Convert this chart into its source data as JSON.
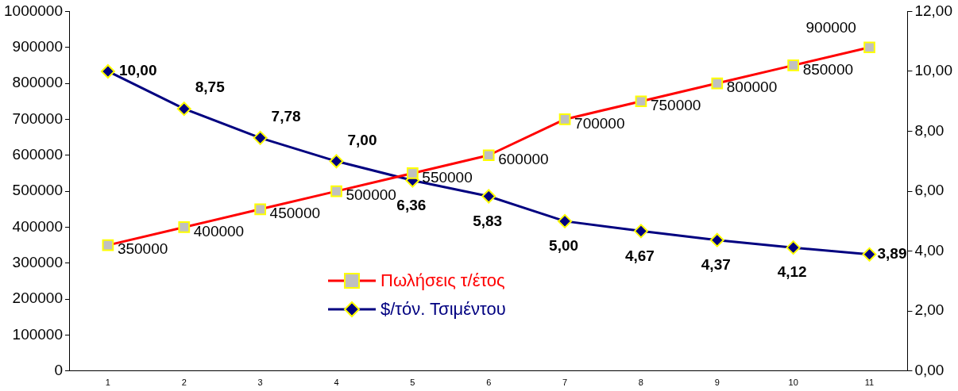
{
  "chart_data": {
    "type": "line",
    "categories": [
      "1",
      "2",
      "3",
      "4",
      "5",
      "6",
      "7",
      "8",
      "9",
      "10",
      "11"
    ],
    "series": [
      {
        "name": "Πωλήσεις τ/έτος",
        "color": "#ff0000",
        "marker": "square",
        "values": [
          350000,
          400000,
          450000,
          500000,
          550000,
          600000,
          700000,
          750000,
          800000,
          850000,
          900000
        ],
        "value_labels": [
          "350000",
          "400000",
          "450000",
          "500000",
          "550000",
          "600000",
          "700000",
          "750000",
          "800000",
          "850000",
          "900000"
        ]
      },
      {
        "name": "$/τόν. Τσιμέντου",
        "color": "#000080",
        "marker": "diamond",
        "axis": "y2",
        "values": [
          10.0,
          8.75,
          7.78,
          7.0,
          6.36,
          5.83,
          5.0,
          4.67,
          4.37,
          4.12,
          3.89
        ],
        "value_labels": [
          "10,00",
          "8,75",
          "7,78",
          "7,00",
          "6,36",
          "5,83",
          "5,00",
          "4,67",
          "4,37",
          "4,12",
          "3,89"
        ]
      }
    ],
    "ylim": [
      0,
      1000000
    ],
    "yticks": [
      0,
      100000,
      200000,
      300000,
      400000,
      500000,
      600000,
      700000,
      800000,
      900000,
      1000000
    ],
    "y2lim": [
      0,
      12
    ],
    "y2ticks": [
      {
        "value": 0,
        "label": "0,00"
      },
      {
        "value": 2,
        "label": "2,00"
      },
      {
        "value": 4,
        "label": "4,00"
      },
      {
        "value": 6,
        "label": "6,00"
      },
      {
        "value": 8,
        "label": "8,00"
      },
      {
        "value": 10,
        "label": "10,00"
      },
      {
        "value": 12,
        "label": "12,00"
      }
    ],
    "grid": false,
    "legend": "bottom"
  }
}
